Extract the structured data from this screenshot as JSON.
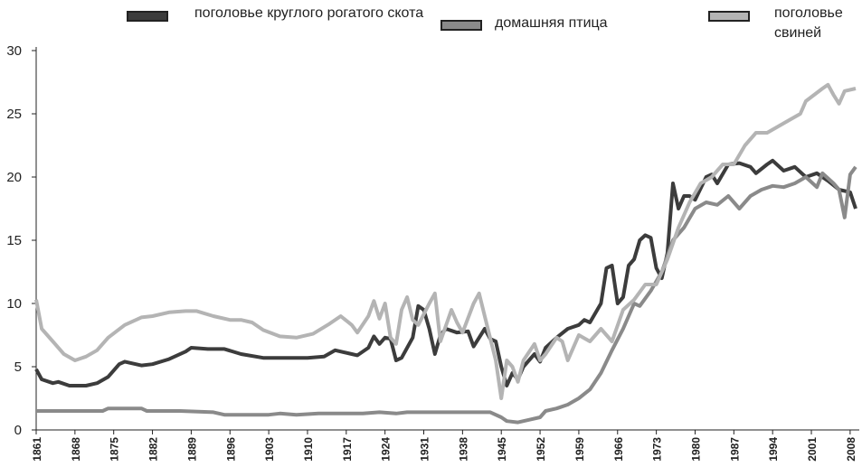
{
  "chart_data": {
    "type": "line",
    "series": [
      {
        "name": "поголовье круглого рогатого скота",
        "color": "#3c3c3c",
        "x": [
          1861,
          1862,
          1864,
          1865,
          1867,
          1870,
          1872,
          1874,
          1876,
          1877,
          1880,
          1882,
          1885,
          1888,
          1889,
          1892,
          1895,
          1898,
          1902,
          1910,
          1913,
          1915,
          1918,
          1919,
          1921,
          1922,
          1923,
          1924,
          1925,
          1926,
          1927,
          1929,
          1930,
          1931,
          1932,
          1933,
          1934,
          1935,
          1937,
          1939,
          1940,
          1942,
          1943,
          1944,
          1945,
          1946,
          1947,
          1948,
          1949,
          1951,
          1952,
          1953,
          1955,
          1957,
          1959,
          1960,
          1961,
          1963,
          1964,
          1965,
          1966,
          1967,
          1968,
          1969,
          1970,
          1971,
          1972,
          1973,
          1974,
          1975,
          1976,
          1977,
          1978,
          1979,
          1980,
          1982,
          1983,
          1984,
          1986,
          1988,
          1990,
          1991,
          1993,
          1994,
          1996,
          1998,
          2000,
          2002,
          2004,
          2006,
          2008,
          2009
        ],
        "values": [
          4.8,
          4.0,
          3.7,
          3.8,
          3.5,
          3.5,
          3.7,
          4.2,
          5.2,
          5.4,
          5.1,
          5.2,
          5.6,
          6.2,
          6.5,
          6.4,
          6.4,
          6.0,
          5.7,
          5.7,
          5.8,
          6.3,
          6.0,
          5.9,
          6.5,
          7.4,
          6.8,
          7.3,
          7.2,
          5.5,
          5.7,
          7.3,
          9.8,
          9.5,
          8.0,
          6.0,
          7.5,
          8.0,
          7.7,
          7.8,
          6.6,
          8.0,
          7.2,
          7.0,
          5.0,
          3.5,
          4.5,
          4.0,
          5.0,
          6.0,
          5.4,
          6.5,
          7.3,
          8.0,
          8.3,
          8.7,
          8.5,
          10.0,
          12.8,
          13.0,
          10.0,
          10.5,
          13.0,
          13.5,
          15.0,
          15.4,
          15.2,
          12.8,
          12.0,
          14.0,
          19.5,
          17.5,
          18.5,
          18.5,
          18.2,
          20.0,
          20.2,
          19.5,
          21.0,
          21.1,
          20.8,
          20.3,
          21.0,
          21.3,
          20.5,
          20.8,
          20.0,
          20.3,
          19.7,
          19.0,
          18.8,
          17.5
        ]
      },
      {
        "name": "домашняя птица",
        "color": "#8a8a8a",
        "x": [
          1861,
          1873,
          1874,
          1880,
          1881,
          1885,
          1887,
          1893,
          1895,
          1903,
          1905,
          1908,
          1912,
          1920,
          1923,
          1926,
          1928,
          1943,
          1945,
          1946,
          1948,
          1950,
          1952,
          1953,
          1955,
          1957,
          1959,
          1961,
          1963,
          1965,
          1967,
          1969,
          1970,
          1972,
          1974,
          1976,
          1978,
          1980,
          1982,
          1984,
          1986,
          1988,
          1990,
          1992,
          1994,
          1996,
          1998,
          2000,
          2002,
          2003,
          2005,
          2006,
          2007,
          2008,
          2009
        ],
        "values": [
          1.5,
          1.5,
          1.7,
          1.7,
          1.5,
          1.5,
          1.5,
          1.4,
          1.2,
          1.2,
          1.3,
          1.2,
          1.3,
          1.3,
          1.4,
          1.3,
          1.4,
          1.4,
          1.0,
          0.7,
          0.6,
          0.8,
          1.0,
          1.5,
          1.7,
          2.0,
          2.5,
          3.2,
          4.5,
          6.3,
          8.0,
          10.0,
          9.8,
          11.0,
          12.5,
          15.0,
          16.0,
          17.5,
          18.0,
          17.8,
          18.5,
          17.5,
          18.5,
          19.0,
          19.3,
          19.2,
          19.5,
          20.0,
          19.2,
          20.3,
          19.5,
          19.0,
          16.8,
          20.2,
          20.8
        ]
      },
      {
        "name": "поголовье свиней",
        "color": "#b4b4b4",
        "x": [
          1861,
          1862,
          1864,
          1866,
          1868,
          1870,
          1872,
          1874,
          1877,
          1880,
          1882,
          1885,
          1888,
          1890,
          1893,
          1896,
          1898,
          1900,
          1902,
          1905,
          1908,
          1911,
          1914,
          1916,
          1918,
          1919,
          1921,
          1922,
          1923,
          1924,
          1925,
          1926,
          1927,
          1928,
          1929,
          1930,
          1932,
          1933,
          1934,
          1936,
          1937,
          1938,
          1940,
          1941,
          1942,
          1944,
          1945,
          1946,
          1947,
          1948,
          1949,
          1951,
          1952,
          1953,
          1955,
          1956,
          1957,
          1959,
          1961,
          1963,
          1965,
          1967,
          1969,
          1971,
          1973,
          1975,
          1977,
          1979,
          1981,
          1983,
          1985,
          1987,
          1989,
          1991,
          1993,
          1995,
          1997,
          1999,
          2000,
          2003,
          2004,
          2005,
          2006,
          2007,
          2009
        ],
        "values": [
          10.3,
          8.0,
          7.0,
          6.0,
          5.5,
          5.8,
          6.3,
          7.3,
          8.3,
          8.9,
          9.0,
          9.3,
          9.4,
          9.4,
          9.0,
          8.7,
          8.7,
          8.5,
          7.9,
          7.4,
          7.3,
          7.6,
          8.4,
          9.0,
          8.3,
          7.7,
          9.0,
          10.2,
          8.8,
          10.0,
          7.3,
          6.8,
          9.5,
          10.5,
          8.7,
          8.3,
          10.0,
          10.8,
          7.0,
          9.5,
          8.5,
          7.7,
          10.0,
          10.8,
          9.0,
          5.5,
          2.5,
          5.5,
          5.0,
          3.8,
          5.5,
          6.8,
          5.5,
          6.0,
          7.3,
          7.0,
          5.5,
          7.5,
          7.0,
          8.0,
          7.0,
          9.5,
          10.3,
          11.5,
          11.5,
          13.5,
          16.0,
          18.0,
          19.5,
          20.0,
          21.0,
          21.0,
          22.5,
          23.5,
          23.5,
          24.0,
          24.5,
          25.0,
          26.0,
          27.0,
          27.3,
          26.5,
          25.8,
          26.8,
          27.0
        ]
      }
    ],
    "xlim": [
      1861,
      2009
    ],
    "xticks": [
      1861,
      1868,
      1875,
      1882,
      1889,
      1896,
      1903,
      1910,
      1917,
      1924,
      1931,
      1938,
      1945,
      1952,
      1959,
      1966,
      1973,
      1980,
      1987,
      1994,
      2001,
      2008
    ],
    "ylim": [
      0,
      30
    ],
    "yticks": [
      0,
      5,
      10,
      15,
      20,
      25,
      30
    ],
    "grid": false
  }
}
